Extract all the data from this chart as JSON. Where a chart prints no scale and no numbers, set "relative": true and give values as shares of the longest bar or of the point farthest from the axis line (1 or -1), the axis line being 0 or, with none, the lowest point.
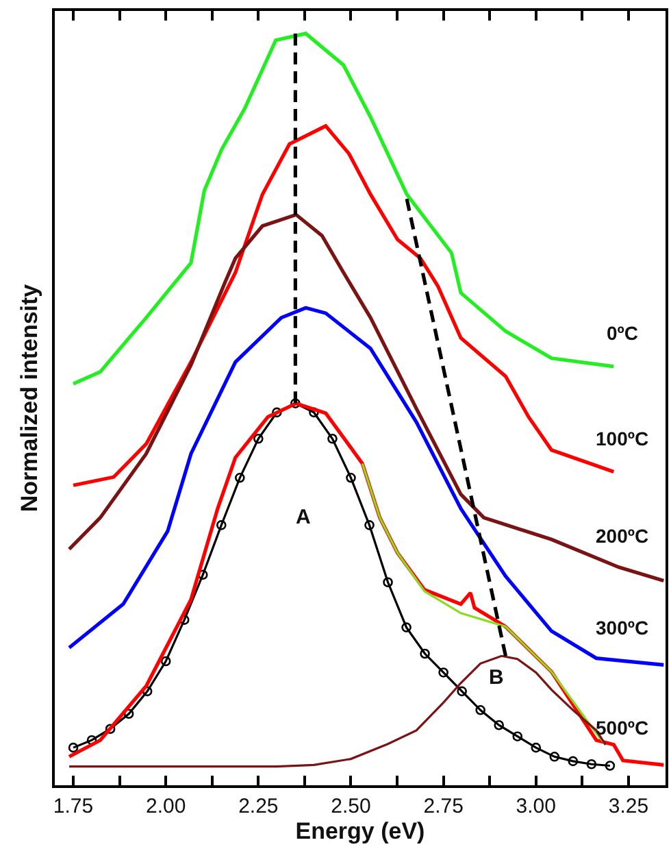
{
  "chart_data": {
    "type": "line",
    "relative": true,
    "xlabel": "Energy (eV)",
    "ylabel": "Normalized intensity",
    "xlim": [
      1.7,
      3.35
    ],
    "xticks": [
      1.75,
      {
        "value": 1.875,
        "label": null
      },
      {
        "value": 2.0,
        "label": "2.00"
      },
      {
        "value": 2.125,
        "label": null
      },
      {
        "value": 2.25,
        "label": "2.25"
      },
      {
        "value": 2.375,
        "label": null
      },
      {
        "value": 2.5,
        "label": "2.50"
      },
      {
        "value": 2.625,
        "label": null
      },
      2.75,
      {
        "value": 2.875,
        "label": null
      },
      {
        "value": 3.0,
        "label": "3.00"
      },
      {
        "value": 3.125,
        "label": null
      },
      3.25
    ],
    "grid": false,
    "legend": false,
    "tick_labels": "x",
    "annotations": [
      "A",
      "B"
    ],
    "series": [
      {
        "name": "0ºC",
        "color": "#22ee22",
        "x": [
          1.75,
          1.823,
          1.947,
          2.068,
          2.104,
          2.151,
          2.213,
          2.297,
          2.378,
          2.48,
          2.553,
          2.651,
          2.772,
          2.797,
          2.918,
          3.042,
          3.21
        ],
        "values": [
          0.534,
          0.55,
          0.622,
          0.695,
          0.791,
          0.846,
          0.9,
          0.991,
          1.0,
          0.958,
          0.889,
          0.786,
          0.708,
          0.655,
          0.604,
          0.568,
          0.557
        ]
      },
      {
        "name": "100ºC",
        "color": "#ff0000",
        "x": [
          1.75,
          1.859,
          1.947,
          2.068,
          2.188,
          2.261,
          2.334,
          2.432,
          2.495,
          2.553,
          2.626,
          2.688,
          2.735,
          2.797,
          2.918,
          2.98,
          3.042,
          3.21
        ],
        "values": [
          0.399,
          0.41,
          0.454,
          0.563,
          0.682,
          0.786,
          0.853,
          0.877,
          0.84,
          0.786,
          0.726,
          0.701,
          0.664,
          0.595,
          0.544,
          0.49,
          0.446,
          0.417
        ]
      },
      {
        "name": "200ºC",
        "color": "#7a1414",
        "x": [
          1.739,
          1.823,
          1.947,
          2.068,
          2.159,
          2.188,
          2.261,
          2.352,
          2.422,
          2.48,
          2.553,
          2.677,
          2.797,
          2.859,
          3.042,
          3.224,
          3.345
        ],
        "values": [
          0.314,
          0.356,
          0.441,
          0.559,
          0.668,
          0.701,
          0.744,
          0.759,
          0.731,
          0.682,
          0.622,
          0.501,
          0.387,
          0.356,
          0.327,
          0.29,
          0.272
        ]
      },
      {
        "name": "300ºC",
        "color": "#0000ff",
        "x": [
          1.739,
          1.885,
          2.005,
          2.068,
          2.188,
          2.312,
          2.378,
          2.432,
          2.553,
          2.677,
          2.797,
          2.918,
          3.042,
          3.163,
          3.345
        ],
        "values": [
          0.183,
          0.241,
          0.338,
          0.441,
          0.563,
          0.622,
          0.635,
          0.628,
          0.581,
          0.483,
          0.368,
          0.278,
          0.205,
          0.169,
          0.16
        ]
      },
      {
        "color": "#000000",
        "marker": "circle",
        "x": [
          1.75,
          1.8,
          1.85,
          1.9,
          1.95,
          2.0,
          2.05,
          2.1,
          2.15,
          2.2,
          2.25,
          2.3,
          2.35,
          2.4,
          2.45,
          2.5,
          2.55,
          2.6,
          2.65,
          2.7,
          2.75,
          2.8,
          2.85,
          2.9,
          2.95,
          3.0,
          3.05,
          3.1,
          3.15,
          3.2
        ],
        "values": [
          0.05,
          0.06,
          0.075,
          0.095,
          0.125,
          0.165,
          0.22,
          0.28,
          0.346,
          0.409,
          0.461,
          0.496,
          0.508,
          0.496,
          0.461,
          0.409,
          0.346,
          0.27,
          0.21,
          0.175,
          0.15,
          0.125,
          0.1,
          0.08,
          0.065,
          0.05,
          0.038,
          0.032,
          0.028,
          0.026
        ]
      },
      {
        "name": "500ºC",
        "color": "#ff0000",
        "x": [
          1.739,
          1.823,
          1.947,
          2.068,
          2.14,
          2.188,
          2.276,
          2.352,
          2.432,
          2.531,
          2.578,
          2.626,
          2.699,
          2.797,
          2.823,
          2.834,
          2.918,
          3.042,
          3.163,
          3.21,
          3.235,
          3.345
        ],
        "values": [
          0.038,
          0.06,
          0.132,
          0.247,
          0.368,
          0.436,
          0.49,
          0.508,
          0.495,
          0.428,
          0.356,
          0.309,
          0.26,
          0.241,
          0.256,
          0.236,
          0.211,
          0.151,
          0.06,
          0.054,
          0.033,
          0.027
        ]
      },
      {
        "color": "#88dd22",
        "x": [
          2.531,
          2.578,
          2.626,
          2.699,
          2.797,
          2.918,
          3.042,
          3.163,
          3.188
        ],
        "values": [
          0.428,
          0.356,
          0.309,
          0.258,
          0.229,
          0.211,
          0.151,
          0.069,
          0.054
        ]
      },
      {
        "color": "#7a1414",
        "x": [
          1.739,
          2.3,
          2.4,
          2.5,
          2.6,
          2.677,
          2.75,
          2.797,
          2.85,
          2.907,
          2.95,
          3.0,
          3.042,
          3.1,
          3.163,
          3.188
        ],
        "values": [
          0.025,
          0.025,
          0.027,
          0.035,
          0.055,
          0.073,
          0.11,
          0.136,
          0.162,
          0.172,
          0.168,
          0.15,
          0.127,
          0.1,
          0.073,
          0.054
        ]
      },
      {
        "color": "#000000",
        "line_style": "dashed",
        "x": [
          2.35,
          2.35
        ],
        "values": [
          0.508,
          1.0
        ]
      },
      {
        "color": "#000000",
        "line_style": "dashed",
        "x": [
          2.651,
          2.918
        ],
        "values": [
          0.78,
          0.172
        ]
      }
    ]
  }
}
